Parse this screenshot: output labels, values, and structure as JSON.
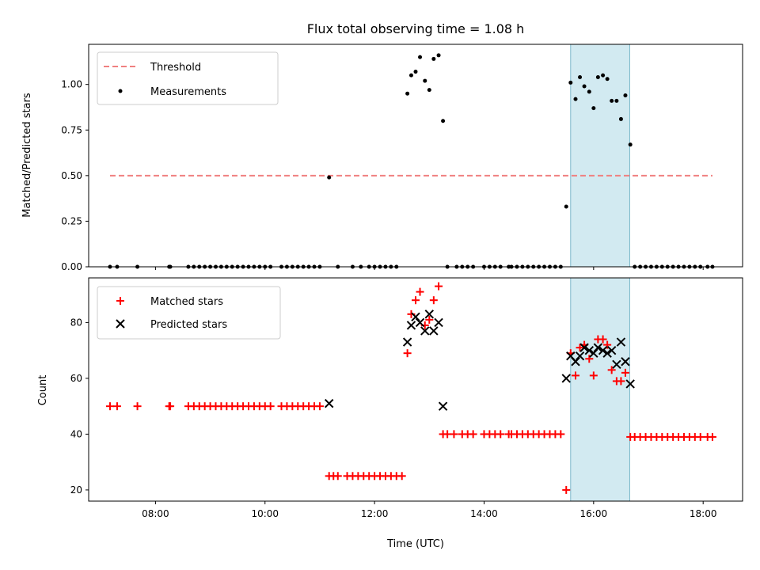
{
  "chart_data": {
    "title": "Flux total observing time = 1.08 h",
    "xlabel": "Time (UTC)",
    "xlim": [
      6.78,
      18.72
    ],
    "x_ticks": [
      {
        "value": 8,
        "label": "08:00"
      },
      {
        "value": 10,
        "label": "10:00"
      },
      {
        "value": 12,
        "label": "12:00"
      },
      {
        "value": 14,
        "label": "14:00"
      },
      {
        "value": 16,
        "label": "16:00"
      },
      {
        "value": 18,
        "label": "18:00"
      }
    ],
    "highlight_span": {
      "start": 15.58,
      "end": 16.66,
      "color": "#add8e6"
    },
    "panels": [
      {
        "type": "scatter",
        "ylabel": "Matched/Predicted stars",
        "ylim": [
          0,
          1.22
        ],
        "y_ticks": [
          "0.00",
          "0.25",
          "0.50",
          "0.75",
          "1.00"
        ],
        "legend_position": "upper-left",
        "threshold": {
          "name": "Threshold",
          "value": 0.5,
          "x_range": [
            7.17,
            18.17
          ],
          "color": "#f08080"
        },
        "measurements": {
          "name": "Measurements",
          "color": "#000000",
          "x": [
            7.17,
            7.3,
            7.67,
            8.25,
            8.27,
            8.6,
            8.7,
            8.8,
            8.9,
            9.0,
            9.1,
            9.2,
            9.3,
            9.4,
            9.5,
            9.6,
            9.7,
            9.8,
            9.9,
            10.0,
            10.1,
            10.3,
            10.4,
            10.5,
            10.6,
            10.7,
            10.8,
            10.9,
            11.0,
            11.17,
            11.33,
            11.6,
            11.75,
            11.9,
            12.0,
            12.1,
            12.2,
            12.3,
            12.4,
            12.6,
            12.67,
            12.75,
            12.83,
            12.92,
            13.0,
            13.08,
            13.17,
            13.25,
            13.33,
            13.5,
            13.6,
            13.7,
            13.8,
            14.0,
            14.1,
            14.2,
            14.3,
            14.45,
            14.5,
            14.6,
            14.7,
            14.8,
            14.9,
            15.0,
            15.1,
            15.2,
            15.3,
            15.4,
            15.5,
            15.58,
            15.67,
            15.75,
            15.83,
            15.92,
            16.0,
            16.08,
            16.17,
            16.25,
            16.33,
            16.42,
            16.5,
            16.58,
            16.67,
            16.75,
            16.85,
            16.95,
            17.05,
            17.15,
            17.25,
            17.35,
            17.45,
            17.55,
            17.65,
            17.75,
            17.85,
            17.95,
            18.08,
            18.17
          ],
          "y": [
            0,
            0,
            0,
            0,
            0,
            0,
            0,
            0,
            0,
            0,
            0,
            0,
            0,
            0,
            0,
            0,
            0,
            0,
            0,
            0,
            0,
            0,
            0,
            0,
            0,
            0,
            0,
            0,
            0,
            0.49,
            0,
            0,
            0,
            0,
            0,
            0,
            0,
            0,
            0,
            0.95,
            1.05,
            1.07,
            1.15,
            1.02,
            0.97,
            1.14,
            1.16,
            0.8,
            0,
            0,
            0,
            0,
            0,
            0,
            0,
            0,
            0,
            0,
            0,
            0,
            0,
            0,
            0,
            0,
            0,
            0,
            0,
            0,
            0.33,
            1.01,
            0.92,
            1.04,
            0.99,
            0.96,
            0.87,
            1.04,
            1.05,
            1.03,
            0.91,
            0.91,
            0.81,
            0.94,
            0.67,
            0,
            0,
            0,
            0,
            0,
            0,
            0,
            0,
            0,
            0,
            0,
            0,
            0,
            0,
            0
          ]
        }
      },
      {
        "type": "scatter",
        "ylabel": "Count",
        "ylim": [
          16,
          96
        ],
        "y_ticks": [
          "20",
          "40",
          "60",
          "80"
        ],
        "legend_position": "upper-left",
        "matched": {
          "name": "Matched stars",
          "color": "#ff0000",
          "x": [
            7.17,
            7.3,
            7.67,
            8.25,
            8.27,
            8.6,
            8.7,
            8.8,
            8.9,
            9.0,
            9.1,
            9.2,
            9.3,
            9.4,
            9.5,
            9.6,
            9.7,
            9.8,
            9.9,
            10.0,
            10.1,
            10.3,
            10.4,
            10.5,
            10.6,
            10.7,
            10.8,
            10.9,
            11.0,
            11.17,
            11.25,
            11.33,
            11.5,
            11.6,
            11.7,
            11.8,
            11.9,
            12.0,
            12.1,
            12.2,
            12.3,
            12.4,
            12.5,
            12.6,
            12.67,
            12.75,
            12.83,
            12.92,
            13.0,
            13.08,
            13.17,
            13.25,
            13.33,
            13.45,
            13.6,
            13.7,
            13.8,
            14.0,
            14.1,
            14.2,
            14.3,
            14.45,
            14.5,
            14.6,
            14.7,
            14.8,
            14.9,
            15.0,
            15.1,
            15.2,
            15.3,
            15.4,
            15.5,
            15.58,
            15.67,
            15.75,
            15.83,
            15.92,
            16.0,
            16.08,
            16.17,
            16.25,
            16.33,
            16.42,
            16.5,
            16.58,
            16.67,
            16.75,
            16.85,
            16.95,
            17.05,
            17.15,
            17.25,
            17.35,
            17.45,
            17.55,
            17.65,
            17.75,
            17.85,
            17.95,
            18.08,
            18.17
          ],
          "y": [
            50,
            50,
            50,
            50,
            50,
            50,
            50,
            50,
            50,
            50,
            50,
            50,
            50,
            50,
            50,
            50,
            50,
            50,
            50,
            50,
            50,
            50,
            50,
            50,
            50,
            50,
            50,
            50,
            50,
            25,
            25,
            25,
            25,
            25,
            25,
            25,
            25,
            25,
            25,
            25,
            25,
            25,
            25,
            69,
            83,
            88,
            91,
            79,
            81,
            88,
            93,
            40,
            40,
            40,
            40,
            40,
            40,
            40,
            40,
            40,
            40,
            40,
            40,
            40,
            40,
            40,
            40,
            40,
            40,
            40,
            40,
            40,
            20,
            69,
            61,
            71,
            72,
            67,
            61,
            74,
            74,
            72,
            63,
            59,
            59,
            62,
            39,
            39,
            39,
            39,
            39,
            39,
            39,
            39,
            39,
            39,
            39,
            39,
            39,
            39,
            39,
            39
          ]
        },
        "predicted": {
          "name": "Predicted stars",
          "color": "#000000",
          "x": [
            11.17,
            12.6,
            12.67,
            12.75,
            12.83,
            12.92,
            13.0,
            13.08,
            13.17,
            13.25,
            15.5,
            15.58,
            15.67,
            15.75,
            15.83,
            15.92,
            16.0,
            16.08,
            16.17,
            16.25,
            16.33,
            16.42,
            16.5,
            16.58,
            16.67
          ],
          "y": [
            51,
            73,
            79,
            82,
            80,
            77,
            83,
            77,
            80,
            50,
            60,
            68,
            66,
            68,
            71,
            70,
            69,
            71,
            70,
            69,
            70,
            65,
            73,
            66,
            58
          ]
        }
      }
    ]
  }
}
